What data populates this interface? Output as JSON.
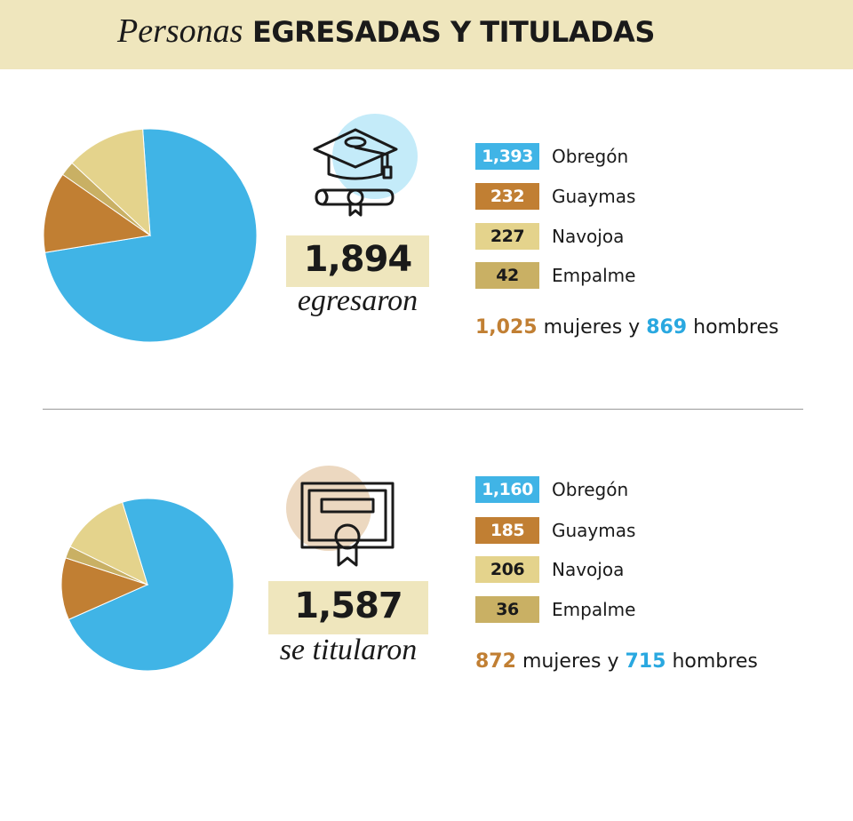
{
  "header": {
    "title_italic": "Personas",
    "title_bold": "EGRESADAS Y TITULADAS"
  },
  "colors": {
    "obregon": "#40b4e6",
    "guaymas": "#c17f33",
    "navojoa": "#e4d38c",
    "empalme": "#c9b064",
    "header_bg": "#efe6bd"
  },
  "sections": [
    {
      "total": "1,894",
      "caption": "egresaron",
      "icon": "graduation-cap-diploma-icon",
      "legend": [
        {
          "value": "1,393",
          "label": "Obregón"
        },
        {
          "value": "232",
          "label": "Guaymas"
        },
        {
          "value": "227",
          "label": "Navojoa"
        },
        {
          "value": "42",
          "label": "Empalme"
        }
      ],
      "women": "1,025",
      "women_text": "mujeres y",
      "men": "869",
      "men_text": "hombres"
    },
    {
      "total": "1,587",
      "caption": "se titularon",
      "icon": "certificate-icon",
      "legend": [
        {
          "value": "1,160",
          "label": "Obregón"
        },
        {
          "value": "185",
          "label": "Guaymas"
        },
        {
          "value": "206",
          "label": "Navojoa"
        },
        {
          "value": "36",
          "label": "Empalme"
        }
      ],
      "women": "872",
      "women_text": "mujeres y",
      "men": "715",
      "men_text": "hombres"
    }
  ],
  "chart_data": [
    {
      "type": "pie",
      "categories": [
        "Obregón",
        "Guaymas",
        "Empalme",
        "Navojoa"
      ],
      "values": [
        1393,
        232,
        42,
        227
      ]
    },
    {
      "type": "pie",
      "categories": [
        "Obregón",
        "Guaymas",
        "Empalme",
        "Navojoa"
      ],
      "values": [
        1160,
        185,
        36,
        206
      ]
    }
  ]
}
